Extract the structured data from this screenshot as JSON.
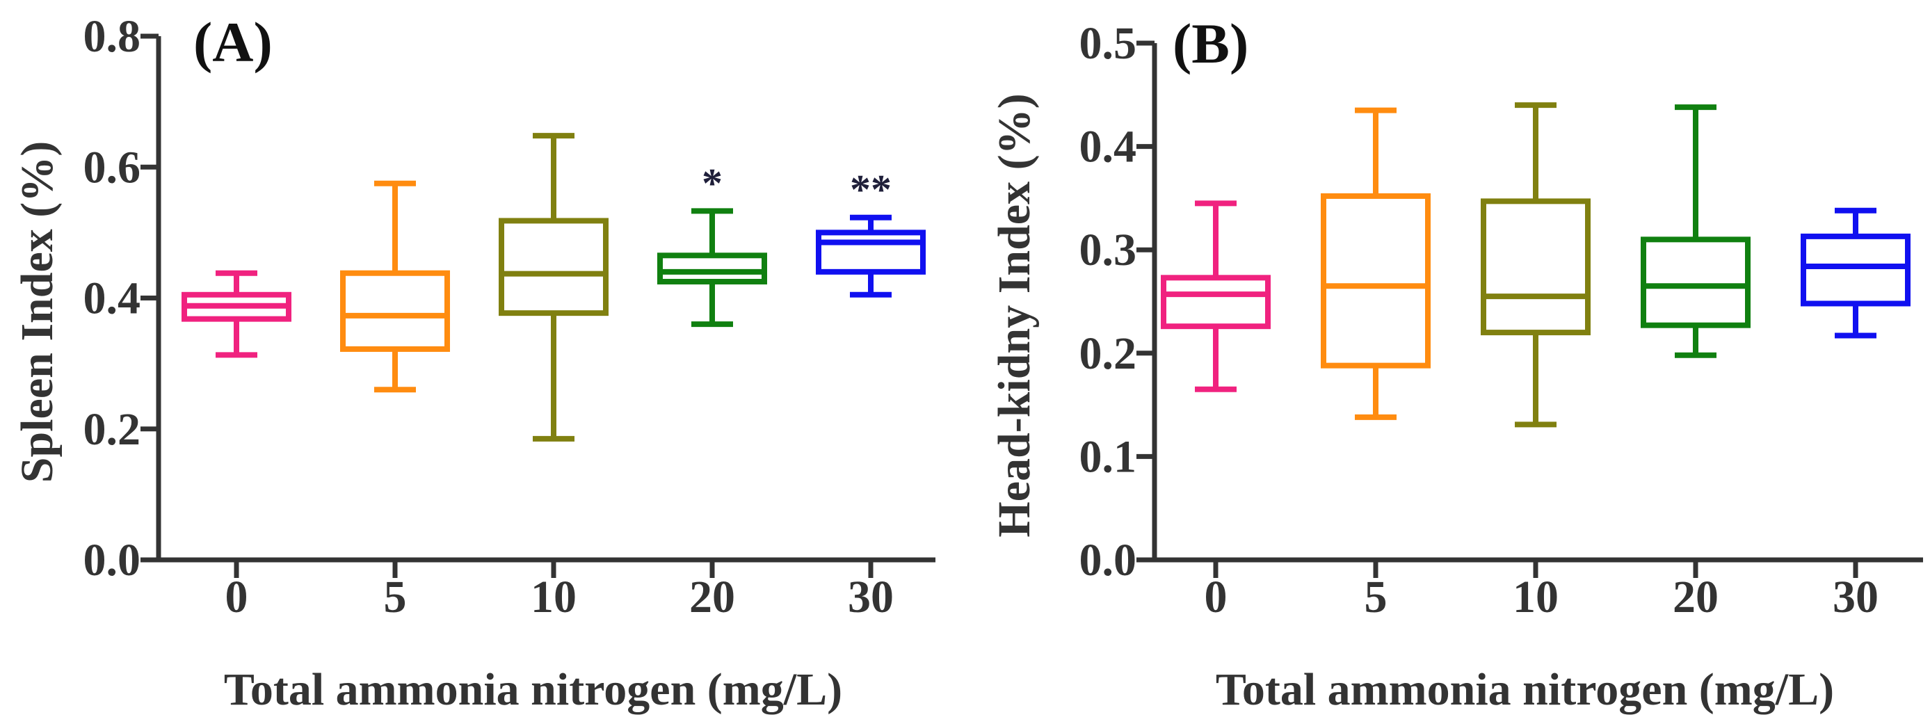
{
  "chart_data": [
    {
      "type": "box",
      "panel_label": "(A)",
      "ylabel": "Spleen Index (%)",
      "xlabel": "Total ammonia nitrogen (mg/L)",
      "ylim": [
        0,
        0.8
      ],
      "yticks": [
        "0.0",
        "0.2",
        "0.4",
        "0.6",
        "0.8"
      ],
      "categories": [
        "0",
        "5",
        "10",
        "20",
        "30"
      ],
      "colors": [
        "#F0227F",
        "#FF8C10",
        "#808010",
        "#108010",
        "#1010F0"
      ],
      "boxes": [
        {
          "min": 0.313,
          "q1": 0.368,
          "median": 0.388,
          "q3": 0.405,
          "max": 0.438,
          "sig": ""
        },
        {
          "min": 0.26,
          "q1": 0.322,
          "median": 0.373,
          "q3": 0.438,
          "max": 0.575,
          "sig": ""
        },
        {
          "min": 0.185,
          "q1": 0.377,
          "median": 0.437,
          "q3": 0.518,
          "max": 0.648,
          "sig": ""
        },
        {
          "min": 0.36,
          "q1": 0.425,
          "median": 0.44,
          "q3": 0.465,
          "max": 0.533,
          "sig": "*"
        },
        {
          "min": 0.405,
          "q1": 0.44,
          "median": 0.485,
          "q3": 0.5,
          "max": 0.523,
          "sig": "**"
        }
      ]
    },
    {
      "type": "box",
      "panel_label": "(B)",
      "ylabel": "Head-kidny Index (%)",
      "xlabel": "Total ammonia nitrogen (mg/L)",
      "ylim": [
        0,
        0.5
      ],
      "yticks": [
        "0.0",
        "0.1",
        "0.2",
        "0.3",
        "0.4",
        "0.5"
      ],
      "categories": [
        "0",
        "5",
        "10",
        "20",
        "30"
      ],
      "colors": [
        "#F0227F",
        "#FF8C10",
        "#808010",
        "#108010",
        "#1010F0"
      ],
      "boxes": [
        {
          "min": 0.165,
          "q1": 0.226,
          "median": 0.257,
          "q3": 0.273,
          "max": 0.345,
          "sig": ""
        },
        {
          "min": 0.138,
          "q1": 0.188,
          "median": 0.265,
          "q3": 0.352,
          "max": 0.435,
          "sig": ""
        },
        {
          "min": 0.131,
          "q1": 0.22,
          "median": 0.255,
          "q3": 0.347,
          "max": 0.44,
          "sig": ""
        },
        {
          "min": 0.198,
          "q1": 0.227,
          "median": 0.265,
          "q3": 0.31,
          "max": 0.438,
          "sig": ""
        },
        {
          "min": 0.217,
          "q1": 0.248,
          "median": 0.284,
          "q3": 0.313,
          "max": 0.338,
          "sig": ""
        }
      ]
    }
  ]
}
